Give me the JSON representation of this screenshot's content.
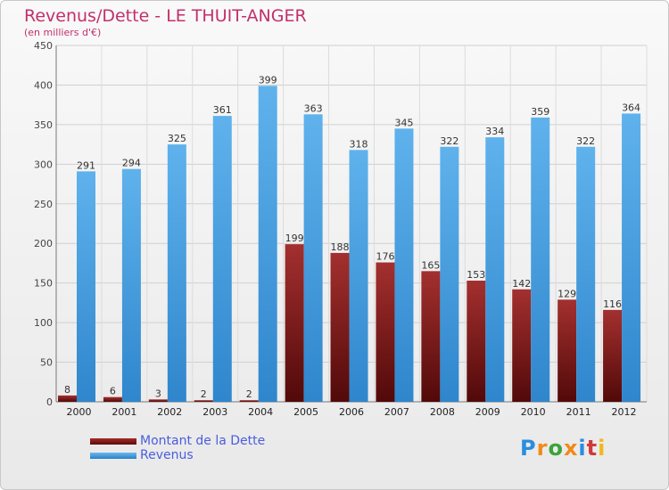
{
  "chart_data": {
    "type": "bar",
    "title": "Revenus/Dette - LE THUIT-ANGER",
    "subtitle": "(en milliers d'€)",
    "categories": [
      "2000",
      "2001",
      "2002",
      "2003",
      "2004",
      "2005",
      "2006",
      "2007",
      "2008",
      "2009",
      "2010",
      "2011",
      "2012"
    ],
    "series": [
      {
        "name": "Montant de la Dette",
        "values": [
          8,
          6,
          3,
          2,
          2,
          199,
          188,
          176,
          165,
          153,
          142,
          129,
          116
        ],
        "color": "#7a1a1a"
      },
      {
        "name": "Revenus",
        "values": [
          291,
          294,
          325,
          361,
          399,
          363,
          318,
          345,
          322,
          334,
          359,
          322,
          364
        ],
        "color": "#4aa3e6"
      }
    ],
    "ylim": [
      0,
      450
    ],
    "yticks": [
      0,
      50,
      100,
      150,
      200,
      250,
      300,
      350,
      400,
      450
    ],
    "grid": true,
    "legend_position": "bottom-left"
  },
  "logo": {
    "text": "Proxiti",
    "letters": [
      "P",
      "r",
      "o",
      "x",
      "i",
      "t",
      "i"
    ],
    "colors": [
      "#2a8de0",
      "#f08a1a",
      "#3aa43a",
      "#f08a1a",
      "#2a8de0",
      "#d03a3a",
      "#f0b81a"
    ]
  }
}
